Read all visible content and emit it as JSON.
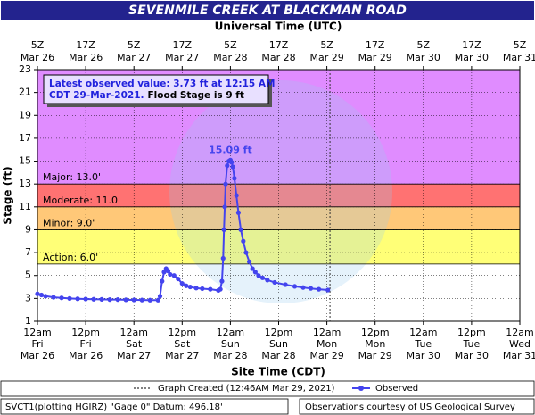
{
  "chart_data": {
    "type": "line",
    "title": "SEVENMILE CREEK AT BLACKMAN ROAD",
    "x2_title": "Universal Time (UTC)",
    "x_title": "Site Time (CDT)",
    "y_title": "Stage (ft)",
    "xlim": [
      0,
      120
    ],
    "ylim": [
      1,
      23
    ],
    "yticks": [
      1,
      3,
      5,
      7,
      9,
      11,
      13,
      15,
      17,
      19,
      21,
      23
    ],
    "xticks": [
      {
        "value": 0,
        "label": [
          "12am",
          "Fri",
          "Mar 26"
        ]
      },
      {
        "value": 12,
        "label": [
          "12pm",
          "Fri",
          "Mar 26"
        ]
      },
      {
        "value": 24,
        "label": [
          "12am",
          "Sat",
          "Mar 27"
        ]
      },
      {
        "value": 36,
        "label": [
          "12pm",
          "Sat",
          "Mar 27"
        ]
      },
      {
        "value": 48,
        "label": [
          "12am",
          "Sun",
          "Mar 28"
        ]
      },
      {
        "value": 60,
        "label": [
          "12pm",
          "Sun",
          "Mar 28"
        ]
      },
      {
        "value": 72,
        "label": [
          "12am",
          "Mon",
          "Mar 29"
        ]
      },
      {
        "value": 84,
        "label": [
          "12pm",
          "Mon",
          "Mar 29"
        ]
      },
      {
        "value": 96,
        "label": [
          "12am",
          "Tue",
          "Mar 30"
        ]
      },
      {
        "value": 108,
        "label": [
          "12pm",
          "Tue",
          "Mar 30"
        ]
      },
      {
        "value": 120,
        "label": [
          "12am",
          "Wed",
          "Mar 31"
        ]
      }
    ],
    "x2ticks": [
      {
        "value": 0,
        "label": [
          "5Z",
          "Mar 26"
        ]
      },
      {
        "value": 12,
        "label": [
          "17Z",
          "Mar 26"
        ]
      },
      {
        "value": 24,
        "label": [
          "5Z",
          "Mar 27"
        ]
      },
      {
        "value": 36,
        "label": [
          "17Z",
          "Mar 27"
        ]
      },
      {
        "value": 48,
        "label": [
          "5Z",
          "Mar 28"
        ]
      },
      {
        "value": 60,
        "label": [
          "17Z",
          "Mar 28"
        ]
      },
      {
        "value": 72,
        "label": [
          "5Z",
          "Mar 29"
        ]
      },
      {
        "value": 84,
        "label": [
          "17Z",
          "Mar 29"
        ]
      },
      {
        "value": 96,
        "label": [
          "5Z",
          "Mar 30"
        ]
      },
      {
        "value": 108,
        "label": [
          "17Z",
          "Mar 30"
        ]
      },
      {
        "value": 120,
        "label": [
          "5Z",
          "Mar 31"
        ]
      }
    ],
    "grid": true,
    "flood_categories": [
      {
        "label": "Action: 6.0'",
        "value": 6,
        "color": "#ffff77"
      },
      {
        "label": "Minor: 9.0'",
        "value": 9,
        "color": "#ffc878"
      },
      {
        "label": "Moderate: 11.0'",
        "value": 11,
        "color": "#ff7272"
      },
      {
        "label": "Major: 13.0'",
        "value": 13,
        "color": "#e08cff"
      }
    ],
    "series": [
      {
        "name": "Observed",
        "color": "#4444ee",
        "x": [
          0,
          1,
          2,
          4,
          6,
          8,
          10,
          12,
          14,
          16,
          18,
          20,
          22,
          24,
          26,
          28,
          30,
          30.5,
          31,
          31.5,
          32,
          32.5,
          33,
          34,
          35,
          36,
          37,
          38,
          39.5,
          41,
          43,
          45,
          45.5,
          45.9,
          46.2,
          46.4,
          46.6,
          46.8,
          47.2,
          47.6,
          48,
          48.3,
          48.6,
          49,
          49.5,
          50,
          50.6,
          51.2,
          51.9,
          52.7,
          53.5,
          54.2,
          55,
          56,
          57.2,
          59,
          61.7,
          64,
          66.1,
          68,
          70,
          72.25
        ],
        "values": [
          3.4,
          3.3,
          3.2,
          3.1,
          3.05,
          3.0,
          2.97,
          2.95,
          2.93,
          2.92,
          2.9,
          2.9,
          2.88,
          2.87,
          2.86,
          2.85,
          2.85,
          3.2,
          4.5,
          5.3,
          5.6,
          5.4,
          5.1,
          5.0,
          4.7,
          4.3,
          4.1,
          4.0,
          3.9,
          3.85,
          3.8,
          3.7,
          3.8,
          4.5,
          6.5,
          9,
          11,
          13,
          14.6,
          15.0,
          15.09,
          14.9,
          14.5,
          13.5,
          12,
          10.5,
          9,
          8,
          7,
          6.2,
          5.6,
          5.3,
          5.0,
          4.8,
          4.6,
          4.4,
          4.2,
          4.05,
          3.95,
          3.87,
          3.8,
          3.73
        ]
      }
    ],
    "peak_label": "15.09 ft",
    "latest_note": {
      "line1": "Latest observed value: 3.73 ft at 12:15 AM",
      "line2": "CDT 29-Mar-2021.",
      "flood_stage": "Flood Stage is 9 ft"
    },
    "graph_created": {
      "label": "Graph Created (12:46AM Mar 29, 2021)",
      "x": 72.77
    },
    "footer_left": "SVCT1(plotting HGIRZ) \"Gage 0\" Datum: 496.18'",
    "footer_right": "Observations courtesy of US Geological Survey"
  }
}
